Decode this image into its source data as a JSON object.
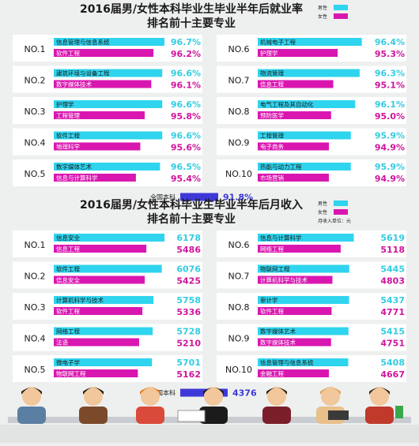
{
  "colors": {
    "male": "#2fd4ee",
    "female": "#d917b0",
    "total": "#3d39d8",
    "male_value": "#33cce0",
    "female_value": "#d0149c",
    "background": "#eef0ef",
    "card": "#ffffff",
    "text": "#1a1a1a"
  },
  "chart_data": [
    {
      "type": "bar",
      "title": "2016届男/女性本科毕业生毕业半年后就业率",
      "subtitle": "排名前十主要专业",
      "legend": {
        "male": "男性",
        "female": "女性",
        "placement": "top-right"
      },
      "ranks": [
        "NO.1",
        "NO.2",
        "NO.3",
        "NO.4",
        "NO.5",
        "NO.6",
        "NO.7",
        "NO.8",
        "NO.9",
        "NO.10"
      ],
      "series": [
        {
          "name": "男性",
          "categories": [
            "信息管理与信息系统",
            "建筑环境与设备工程",
            "护理学",
            "软件工程",
            "数字媒体艺术",
            "机械电子工程",
            "物流管理",
            "电气工程及其自动化",
            "工程管理",
            "热能与动力工程"
          ],
          "values": [
            "96.7%",
            "96.6%",
            "96.6%",
            "96.6%",
            "96.5%",
            "96.4%",
            "96.3%",
            "96.1%",
            "95.9%",
            "95.9%"
          ]
        },
        {
          "name": "女性",
          "categories": [
            "软件工程",
            "数字媒体技术",
            "工程管理",
            "地理科学",
            "信息与计算科学",
            "护理学",
            "信息工程",
            "预防医学",
            "电子商务",
            "市场营销"
          ],
          "values": [
            "96.2%",
            "96.1%",
            "95.8%",
            "95.6%",
            "95.4%",
            "95.3%",
            "95.1%",
            "95.0%",
            "94.9%",
            "94.9%"
          ]
        }
      ],
      "total": {
        "label": "全国本科",
        "value": "91.8%"
      }
    },
    {
      "type": "bar",
      "title": "2016届男/女性本科毕业生毕业半年后月收入",
      "subtitle": "排名前十主要专业",
      "legend": {
        "male": "男性",
        "female": "女性",
        "unit": "月收入单位：元",
        "placement": "top-right"
      },
      "ranks": [
        "NO.1",
        "NO.2",
        "NO.3",
        "NO.4",
        "NO.5",
        "NO.6",
        "NO.7",
        "NO.8",
        "NO.9",
        "NO.10"
      ],
      "series": [
        {
          "name": "男性",
          "categories": [
            "信息安全",
            "软件工程",
            "计算机科学与技术",
            "网络工程",
            "微电子学",
            "信息与计算科学",
            "物联网工程",
            "审计学",
            "数字媒体艺术",
            "信息管理与信息系统"
          ],
          "values": [
            6178,
            6076,
            5758,
            5728,
            5701,
            5619,
            5445,
            5437,
            5415,
            5408
          ]
        },
        {
          "name": "女性",
          "categories": [
            "信息工程",
            "信息安全",
            "软件工程",
            "法语",
            "物联网工程",
            "网络工程",
            "计算机科学与技术",
            "软件工程",
            "数字媒体技术",
            "金融工程"
          ],
          "values": [
            5486,
            5425,
            5336,
            5210,
            5162,
            5118,
            4803,
            4771,
            4751,
            4667
          ]
        }
      ],
      "total": {
        "label": "全国本科",
        "value": 4376
      }
    }
  ]
}
